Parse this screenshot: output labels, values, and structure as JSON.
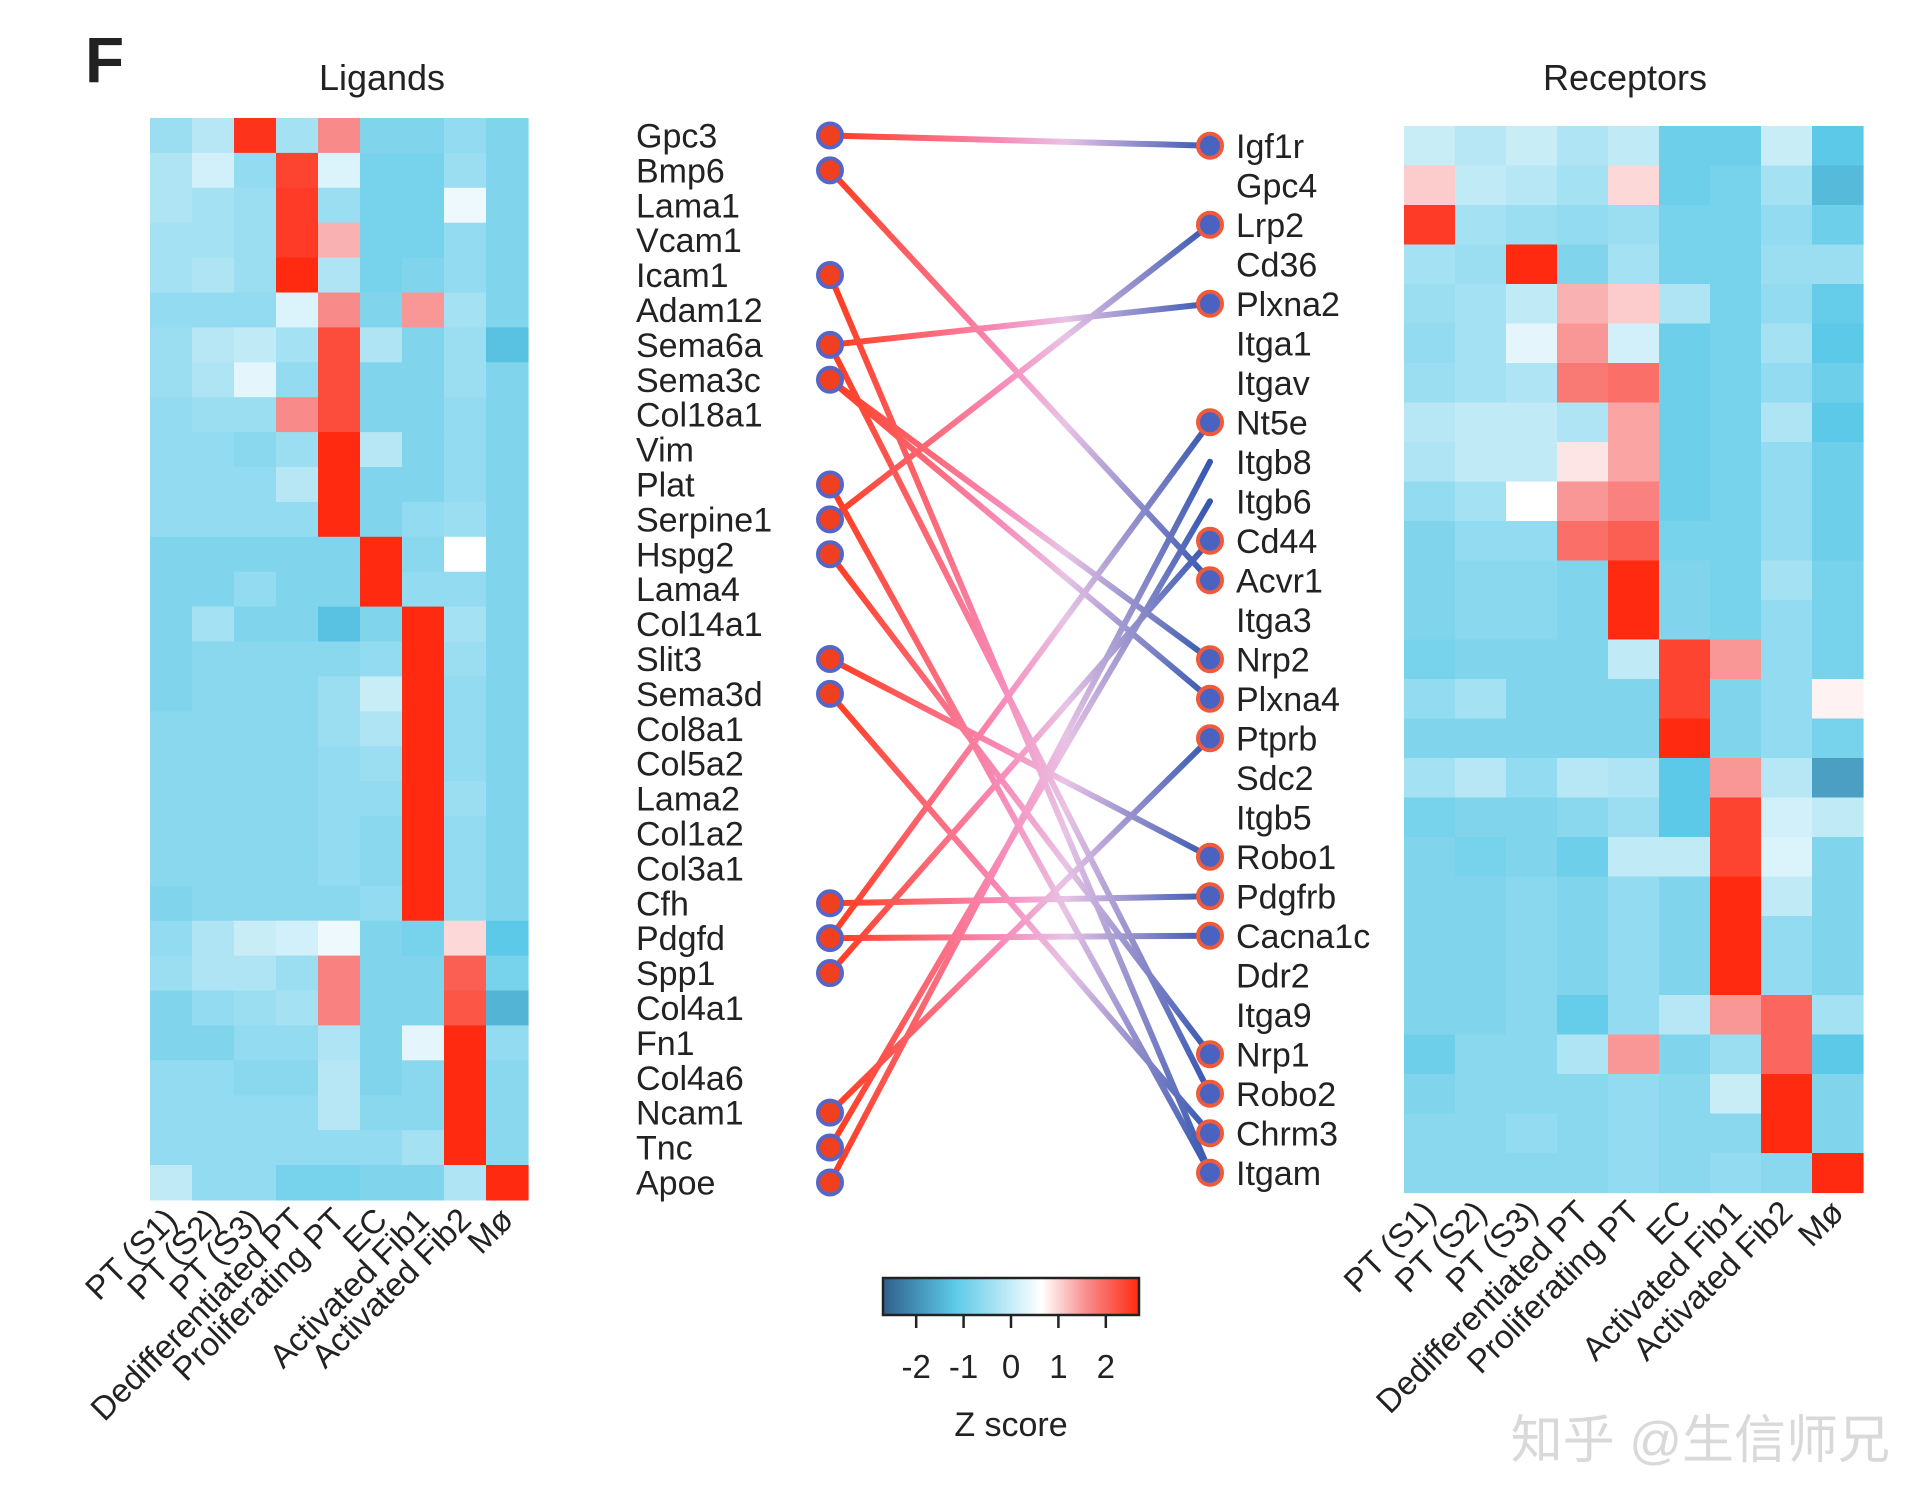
{
  "panel_letter": "F",
  "watermark": "知乎 @生信师兄",
  "chart_data": {
    "type": "heatmap",
    "colorbar": {
      "label": "Z score",
      "ticks": [
        "-2",
        "-1",
        "0",
        "1",
        "2"
      ],
      "tick_values": [
        -2,
        -1,
        0,
        1,
        2
      ],
      "range": [
        -2.7,
        2.7
      ],
      "colors": [
        "#2f5f8a",
        "#5cc9e8",
        "#ffffff",
        "#f88a8a",
        "#ff2a10"
      ]
    },
    "columns": [
      "PT (S1)",
      "PT (S2)",
      "PT (S3)",
      "Dedifferentiated PT",
      "Proliferating PT",
      "EC",
      "Activated Fib1",
      "Activated Fib2",
      "Mø"
    ],
    "ligands": {
      "title": "Ligands",
      "rows": [
        "Gpc3",
        "Bmp6",
        "Lama1",
        "Vcam1",
        "Icam1",
        "Adam12",
        "Sema6a",
        "Sema3c",
        "Col18a1",
        "Vim",
        "Plat",
        "Serpine1",
        "Hspg2",
        "Lama4",
        "Col14a1",
        "Slit3",
        "Sema3d",
        "Col8a1",
        "Col5a2",
        "Lama2",
        "Col1a2",
        "Col3a1",
        "Cfh",
        "Pdgfd",
        "Spp1",
        "Col4a1",
        "Fn1",
        "Col4a6",
        "Ncam1",
        "Tnc",
        "Apoe"
      ],
      "values": [
        [
          -0.5,
          -0.2,
          2.5,
          -0.4,
          1.5,
          -0.8,
          -0.8,
          -0.6,
          -0.8
        ],
        [
          -0.3,
          0.1,
          -0.6,
          2.3,
          0.2,
          -0.9,
          -0.9,
          -0.5,
          -0.8
        ],
        [
          -0.3,
          -0.4,
          -0.5,
          2.4,
          -0.5,
          -0.9,
          -0.9,
          0.4,
          -0.8
        ],
        [
          -0.4,
          -0.4,
          -0.5,
          2.4,
          1.2,
          -0.9,
          -0.9,
          -0.6,
          -0.8
        ],
        [
          -0.4,
          -0.3,
          -0.5,
          2.6,
          -0.3,
          -0.9,
          -0.8,
          -0.6,
          -0.8
        ],
        [
          -0.6,
          -0.6,
          -0.6,
          0.2,
          1.5,
          -0.8,
          1.4,
          -0.4,
          -0.8
        ],
        [
          -0.5,
          -0.2,
          -0.1,
          -0.4,
          2.2,
          -0.3,
          -0.8,
          -0.5,
          -1.3
        ],
        [
          -0.5,
          -0.3,
          0.3,
          -0.6,
          2.2,
          -0.8,
          -0.8,
          -0.5,
          -0.8
        ],
        [
          -0.6,
          -0.5,
          -0.5,
          1.5,
          2.2,
          -0.8,
          -0.8,
          -0.6,
          -0.8
        ],
        [
          -0.6,
          -0.6,
          -0.7,
          -0.5,
          2.6,
          -0.2,
          -0.8,
          -0.6,
          -0.8
        ],
        [
          -0.6,
          -0.6,
          -0.6,
          -0.2,
          2.6,
          -0.8,
          -0.8,
          -0.6,
          -0.8
        ],
        [
          -0.6,
          -0.6,
          -0.6,
          -0.6,
          2.6,
          -0.8,
          -0.6,
          -0.5,
          -0.8
        ],
        [
          -0.8,
          -0.8,
          -0.8,
          -0.8,
          -0.8,
          2.6,
          -0.7,
          0.6,
          -0.8
        ],
        [
          -0.8,
          -0.8,
          -0.6,
          -0.8,
          -0.8,
          2.6,
          -0.6,
          -0.6,
          -0.8
        ],
        [
          -0.8,
          -0.4,
          -0.8,
          -0.8,
          -1.3,
          -0.8,
          2.6,
          -0.4,
          -0.8
        ],
        [
          -0.8,
          -0.7,
          -0.7,
          -0.7,
          -0.7,
          -0.6,
          2.6,
          -0.5,
          -0.8
        ],
        [
          -0.8,
          -0.7,
          -0.7,
          -0.7,
          -0.5,
          0.0,
          2.6,
          -0.6,
          -0.8
        ],
        [
          -0.7,
          -0.7,
          -0.7,
          -0.7,
          -0.5,
          -0.3,
          2.6,
          -0.6,
          -0.8
        ],
        [
          -0.7,
          -0.7,
          -0.7,
          -0.7,
          -0.6,
          -0.5,
          2.6,
          -0.6,
          -0.8
        ],
        [
          -0.7,
          -0.7,
          -0.7,
          -0.7,
          -0.6,
          -0.6,
          2.6,
          -0.5,
          -0.8
        ],
        [
          -0.7,
          -0.7,
          -0.7,
          -0.7,
          -0.6,
          -0.7,
          2.6,
          -0.6,
          -0.8
        ],
        [
          -0.7,
          -0.7,
          -0.7,
          -0.7,
          -0.6,
          -0.7,
          2.6,
          -0.6,
          -0.8
        ],
        [
          -0.8,
          -0.7,
          -0.7,
          -0.7,
          -0.7,
          -0.6,
          2.6,
          -0.6,
          -0.8
        ],
        [
          -0.6,
          -0.3,
          0.0,
          0.1,
          0.4,
          -0.8,
          -0.9,
          0.9,
          -1.2
        ],
        [
          -0.5,
          -0.3,
          -0.3,
          -0.5,
          1.6,
          -0.8,
          -0.8,
          2.0,
          -0.9
        ],
        [
          -0.8,
          -0.6,
          -0.5,
          -0.4,
          1.6,
          -0.8,
          -0.8,
          2.1,
          -1.5
        ],
        [
          -0.8,
          -0.8,
          -0.6,
          -0.6,
          -0.3,
          -0.8,
          0.3,
          2.6,
          -0.6
        ],
        [
          -0.6,
          -0.6,
          -0.7,
          -0.7,
          -0.2,
          -0.8,
          -0.7,
          2.6,
          -0.7
        ],
        [
          -0.6,
          -0.6,
          -0.6,
          -0.6,
          -0.2,
          -0.7,
          -0.7,
          2.6,
          -0.7
        ],
        [
          -0.6,
          -0.6,
          -0.6,
          -0.6,
          -0.6,
          -0.6,
          -0.4,
          2.6,
          -0.7
        ],
        [
          -0.1,
          -0.6,
          -0.6,
          -0.9,
          -0.9,
          -0.8,
          -0.8,
          -0.3,
          2.6
        ]
      ],
      "dot_rows": [
        0,
        1,
        4,
        6,
        7,
        10,
        11,
        12,
        15,
        16,
        22,
        23,
        24,
        28,
        29,
        30
      ]
    },
    "receptors": {
      "title": "Receptors",
      "rows": [
        "Igf1r",
        "Gpc4",
        "Lrp2",
        "Cd36",
        "Plxna2",
        "Itga1",
        "Itgav",
        "Nt5e",
        "Itgb8",
        "Itgb6",
        "Cd44",
        "Acvr1",
        "Itga3",
        "Nrp2",
        "Plxna4",
        "Ptprb",
        "Sdc2",
        "Itgb5",
        "Robo1",
        "Pdgfrb",
        "Cacna1c",
        "Ddr2",
        "Itga9",
        "Nrp1",
        "Robo2",
        "Chrm3",
        "Itgam"
      ],
      "values": [
        [
          0.0,
          -0.2,
          0.0,
          -0.3,
          -0.1,
          -1.0,
          -1.0,
          0.0,
          -1.2
        ],
        [
          1.0,
          -0.1,
          -0.2,
          -0.4,
          0.9,
          -1.0,
          -0.9,
          -0.4,
          -1.4
        ],
        [
          2.4,
          -0.4,
          -0.5,
          -0.6,
          -0.5,
          -0.9,
          -0.9,
          -0.6,
          -1.0
        ],
        [
          -0.4,
          -0.5,
          2.6,
          -0.8,
          -0.4,
          -0.9,
          -0.9,
          -0.5,
          -0.5
        ],
        [
          -0.5,
          -0.4,
          -0.1,
          1.2,
          1.0,
          -0.3,
          -0.9,
          -0.6,
          -1.1
        ],
        [
          -0.6,
          -0.4,
          0.3,
          1.4,
          0.1,
          -1.0,
          -0.9,
          -0.4,
          -1.2
        ],
        [
          -0.5,
          -0.4,
          -0.3,
          1.7,
          1.8,
          -1.0,
          -0.9,
          -0.6,
          -1.0
        ],
        [
          -0.2,
          -0.1,
          -0.1,
          -0.3,
          1.3,
          -1.0,
          -0.9,
          -0.3,
          -1.2
        ],
        [
          -0.3,
          -0.1,
          -0.1,
          0.8,
          1.3,
          -1.0,
          -0.9,
          -0.6,
          -1.0
        ],
        [
          -0.6,
          -0.4,
          0.6,
          1.4,
          1.6,
          -1.0,
          -0.9,
          -0.6,
          -1.0
        ],
        [
          -0.8,
          -0.6,
          -0.6,
          1.8,
          2.0,
          -0.9,
          -0.9,
          -0.6,
          -1.0
        ],
        [
          -0.8,
          -0.7,
          -0.7,
          -0.8,
          2.6,
          -0.8,
          -0.9,
          -0.4,
          -0.9
        ],
        [
          -0.8,
          -0.7,
          -0.7,
          -0.8,
          2.6,
          -0.8,
          -0.9,
          -0.6,
          -0.9
        ],
        [
          -0.9,
          -0.8,
          -0.8,
          -0.8,
          -0.1,
          2.3,
          1.4,
          -0.6,
          -0.9
        ],
        [
          -0.6,
          -0.4,
          -0.8,
          -0.8,
          -0.8,
          2.3,
          -0.8,
          -0.6,
          0.7
        ],
        [
          -0.8,
          -0.8,
          -0.8,
          -0.8,
          -0.8,
          2.6,
          -0.8,
          -0.6,
          -0.9
        ],
        [
          -0.4,
          -0.2,
          -0.6,
          -0.2,
          -0.3,
          -1.2,
          1.4,
          -0.2,
          -1.8
        ],
        [
          -0.9,
          -0.8,
          -0.8,
          -0.7,
          -0.5,
          -1.2,
          2.3,
          0.1,
          -0.1
        ],
        [
          -0.8,
          -0.9,
          -0.8,
          -1.0,
          -0.1,
          -0.1,
          2.3,
          0.2,
          -0.8
        ],
        [
          -0.8,
          -0.8,
          -0.7,
          -0.8,
          -0.6,
          -0.8,
          2.6,
          -0.1,
          -0.8
        ],
        [
          -0.8,
          -0.8,
          -0.7,
          -0.8,
          -0.6,
          -0.8,
          2.6,
          -0.6,
          -0.8
        ],
        [
          -0.8,
          -0.8,
          -0.7,
          -0.8,
          -0.6,
          -0.8,
          2.6,
          -0.6,
          -0.8
        ],
        [
          -0.8,
          -0.8,
          -0.7,
          -1.1,
          -0.6,
          -0.2,
          1.4,
          1.9,
          -0.4
        ],
        [
          -1.0,
          -0.7,
          -0.7,
          -0.3,
          1.4,
          -0.8,
          -0.5,
          1.9,
          -1.2
        ],
        [
          -0.8,
          -0.7,
          -0.7,
          -0.7,
          -0.6,
          -0.7,
          0.0,
          2.6,
          -0.8
        ],
        [
          -0.7,
          -0.7,
          -0.6,
          -0.7,
          -0.6,
          -0.7,
          -0.7,
          2.6,
          -0.8
        ],
        [
          -0.7,
          -0.7,
          -0.7,
          -0.7,
          -0.6,
          -0.7,
          -0.6,
          -0.7,
          2.6
        ]
      ],
      "dot_rows": [
        0,
        2,
        4,
        7,
        10,
        11,
        13,
        14,
        15,
        18,
        19,
        20,
        23,
        24,
        25,
        26
      ]
    },
    "links": [
      {
        "ligand": "Gpc3",
        "receptor": "Igf1r"
      },
      {
        "ligand": "Bmp6",
        "receptor": "Acvr1"
      },
      {
        "ligand": "Icam1",
        "receptor": "Itgam"
      },
      {
        "ligand": "Sema6a",
        "receptor": "Plxna2"
      },
      {
        "ligand": "Sema6a",
        "receptor": "Robo2"
      },
      {
        "ligand": "Sema3c",
        "receptor": "Nrp2"
      },
      {
        "ligand": "Sema3c",
        "receptor": "Plxna4"
      },
      {
        "ligand": "Plat",
        "receptor": "Itgam"
      },
      {
        "ligand": "Serpine1",
        "receptor": "Lrp2"
      },
      {
        "ligand": "Hspg2",
        "receptor": "Nrp1"
      },
      {
        "ligand": "Slit3",
        "receptor": "Robo1"
      },
      {
        "ligand": "Sema3d",
        "receptor": "Chrm3"
      },
      {
        "ligand": "Cfh",
        "receptor": "Pdgfrb"
      },
      {
        "ligand": "Pdgfd",
        "receptor": "Nt5e"
      },
      {
        "ligand": "Pdgfd",
        "receptor": "Cacna1c"
      },
      {
        "ligand": "Spp1",
        "receptor": "Cd44"
      },
      {
        "ligand": "Ncam1",
        "receptor": "Ptprb"
      },
      {
        "ligand": "Tnc",
        "receptor": "Itgb6"
      },
      {
        "ligand": "Apoe",
        "receptor": "Itgb8"
      }
    ]
  }
}
